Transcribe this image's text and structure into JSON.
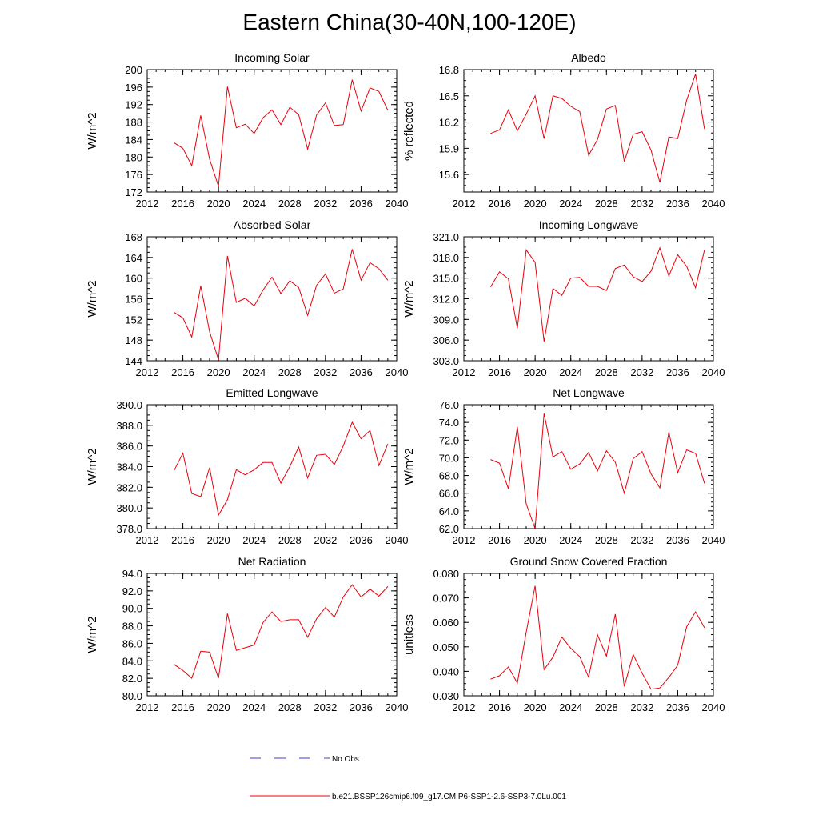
{
  "figure": {
    "title": "Eastern China(30-40N,100-120E)",
    "legend": [
      {
        "label": "No Obs",
        "style": "dashed",
        "color": "#3b3bd0"
      },
      {
        "label": "b.e21.BSSP126cmip6.f09_g17.CMIP6-SSP1-2.6-SSP3-7.0Lu.001",
        "style": "solid",
        "color": "#e8000b"
      }
    ]
  },
  "chart_data": [
    {
      "type": "line",
      "title": "Incoming Solar",
      "xlabel": "",
      "ylabel": "W/m^2",
      "xlim": [
        2012,
        2040
      ],
      "ylim": [
        172,
        200
      ],
      "xticks": [
        "2012",
        "2016",
        "2020",
        "2024",
        "2028",
        "2032",
        "2036",
        "2040"
      ],
      "yticks": [
        "172",
        "176",
        "180",
        "184",
        "188",
        "192",
        "196",
        "200"
      ],
      "series": [
        {
          "values": [
            183.3,
            182.0,
            178.0,
            189.5,
            179.5,
            173.3,
            196.1,
            186.7,
            187.5,
            185.4,
            189.0,
            190.8,
            187.4,
            191.4,
            189.7,
            181.8,
            189.6,
            192.4,
            187.2,
            187.4,
            197.7,
            190.5,
            195.8,
            195.0,
            190.7
          ]
        }
      ]
    },
    {
      "type": "line",
      "title": "Albedo",
      "xlabel": "",
      "ylabel": "% reflected",
      "xlim": [
        2012,
        2040
      ],
      "ylim": [
        15.4,
        16.8
      ],
      "xticks": [
        "2012",
        "2016",
        "2020",
        "2024",
        "2028",
        "2032",
        "2036",
        "2040"
      ],
      "yticks": [
        "15.6",
        "15.9",
        "16.2",
        "16.5",
        "16.8"
      ],
      "series": [
        {
          "values": [
            16.07,
            16.11,
            16.34,
            16.1,
            16.29,
            16.5,
            16.01,
            16.5,
            16.47,
            16.38,
            16.32,
            15.82,
            16.0,
            16.35,
            16.39,
            15.75,
            16.06,
            16.09,
            15.88,
            15.51,
            16.03,
            16.01,
            16.45,
            16.75,
            16.12
          ]
        }
      ]
    },
    {
      "type": "line",
      "title": "Absorbed Solar",
      "xlabel": "",
      "ylabel": "W/m^2",
      "xlim": [
        2012,
        2040
      ],
      "ylim": [
        144,
        168
      ],
      "xticks": [
        "2012",
        "2016",
        "2020",
        "2024",
        "2028",
        "2032",
        "2036",
        "2040"
      ],
      "yticks": [
        "144",
        "148",
        "152",
        "156",
        "160",
        "164",
        "168"
      ],
      "series": [
        {
          "values": [
            153.4,
            152.3,
            148.6,
            158.5,
            149.6,
            144.2,
            164.3,
            155.3,
            156.1,
            154.6,
            157.7,
            160.2,
            157.0,
            159.5,
            158.2,
            152.8,
            158.6,
            160.8,
            157.1,
            157.9,
            165.6,
            159.6,
            163.0,
            161.8,
            159.6
          ]
        }
      ]
    },
    {
      "type": "line",
      "title": "Incoming Longwave",
      "xlabel": "",
      "ylabel": "W/m^2",
      "xlim": [
        2012,
        2040
      ],
      "ylim": [
        303.0,
        321.0
      ],
      "xticks": [
        "2012",
        "2016",
        "2020",
        "2024",
        "2028",
        "2032",
        "2036",
        "2040"
      ],
      "yticks": [
        "303.0",
        "306.0",
        "309.0",
        "312.0",
        "315.0",
        "318.0",
        "321.0"
      ],
      "series": [
        {
          "values": [
            313.7,
            315.9,
            314.9,
            307.7,
            319.1,
            317.3,
            305.8,
            313.5,
            312.5,
            315.0,
            315.1,
            313.8,
            313.8,
            313.2,
            316.4,
            316.9,
            315.2,
            314.5,
            316.0,
            319.4,
            315.3,
            318.4,
            316.7,
            313.6,
            319.1
          ]
        }
      ]
    },
    {
      "type": "line",
      "title": "Emitted Longwave",
      "xlabel": "",
      "ylabel": "W/m^2",
      "xlim": [
        2012,
        2040
      ],
      "ylim": [
        378.0,
        390.0
      ],
      "xticks": [
        "2012",
        "2016",
        "2020",
        "2024",
        "2028",
        "2032",
        "2036",
        "2040"
      ],
      "yticks": [
        "378.0",
        "380.0",
        "382.0",
        "384.0",
        "386.0",
        "388.0",
        "390.0"
      ],
      "series": [
        {
          "values": [
            383.6,
            385.3,
            381.4,
            381.1,
            383.9,
            379.3,
            380.8,
            383.7,
            383.2,
            383.7,
            384.4,
            384.4,
            382.4,
            384.0,
            385.9,
            382.9,
            385.1,
            385.2,
            384.2,
            386.0,
            388.3,
            386.7,
            387.5,
            384.1,
            386.2
          ]
        }
      ]
    },
    {
      "type": "line",
      "title": "Net Longwave",
      "xlabel": "",
      "ylabel": "W/m^2",
      "xlim": [
        2012,
        2040
      ],
      "ylim": [
        62.0,
        76.0
      ],
      "xticks": [
        "2012",
        "2016",
        "2020",
        "2024",
        "2028",
        "2032",
        "2036",
        "2040"
      ],
      "yticks": [
        "62.0",
        "64.0",
        "66.0",
        "68.0",
        "70.0",
        "72.0",
        "74.0",
        "76.0"
      ],
      "series": [
        {
          "values": [
            69.8,
            69.4,
            66.5,
            73.5,
            64.8,
            62.0,
            75.0,
            70.1,
            70.7,
            68.7,
            69.3,
            70.6,
            68.5,
            70.8,
            69.5,
            66.0,
            69.9,
            70.7,
            68.2,
            66.6,
            72.9,
            68.3,
            70.9,
            70.5,
            67.1
          ]
        }
      ]
    },
    {
      "type": "line",
      "title": "Net Radiation",
      "xlabel": "",
      "ylabel": "W/m^2",
      "xlim": [
        2012,
        2040
      ],
      "ylim": [
        80.0,
        94.0
      ],
      "xticks": [
        "2012",
        "2016",
        "2020",
        "2024",
        "2028",
        "2032",
        "2036",
        "2040"
      ],
      "yticks": [
        "80.0",
        "82.0",
        "84.0",
        "86.0",
        "88.0",
        "90.0",
        "92.0",
        "94.0"
      ],
      "series": [
        {
          "values": [
            83.6,
            82.9,
            82.0,
            85.1,
            85.0,
            82.0,
            89.4,
            85.2,
            85.5,
            85.8,
            88.4,
            89.6,
            88.5,
            88.7,
            88.7,
            86.7,
            88.8,
            90.1,
            89.0,
            91.3,
            92.7,
            91.3,
            92.2,
            91.4,
            92.5
          ]
        }
      ]
    },
    {
      "type": "line",
      "title": "Ground Snow Covered Fraction",
      "xlabel": "",
      "ylabel": "unitless",
      "xlim": [
        2012,
        2040
      ],
      "ylim": [
        0.03,
        0.08
      ],
      "xticks": [
        "2012",
        "2016",
        "2020",
        "2024",
        "2028",
        "2032",
        "2036",
        "2040"
      ],
      "yticks": [
        "0.030",
        "0.040",
        "0.050",
        "0.060",
        "0.070",
        "0.080"
      ],
      "series": [
        {
          "values": [
            0.0368,
            0.0382,
            0.0418,
            0.0352,
            0.056,
            0.0749,
            0.0407,
            0.0458,
            0.054,
            0.0494,
            0.046,
            0.0376,
            0.055,
            0.0462,
            0.0634,
            0.0338,
            0.0469,
            0.0392,
            0.0327,
            0.0332,
            0.0375,
            0.0425,
            0.0582,
            0.0643,
            0.0578
          ]
        }
      ]
    }
  ]
}
